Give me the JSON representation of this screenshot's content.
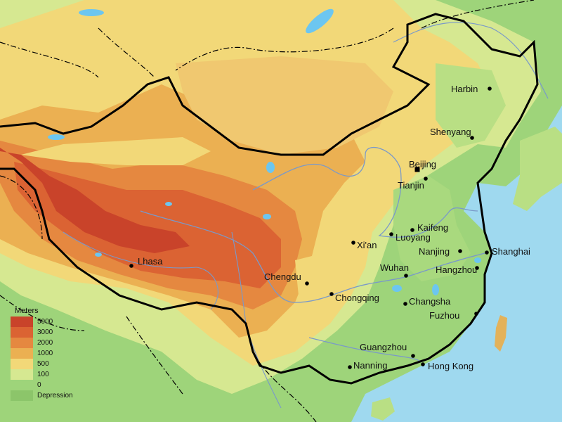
{
  "map": {
    "colors": {
      "sea": "#9fd9ef",
      "depression": "#8cc56a",
      "lowland": "#9ed47a",
      "hills": "#d6e891",
      "upland": "#f2d878",
      "plateau": "#ebb052",
      "high_plateau": "#e58840",
      "mountain": "#db6333",
      "peak": "#c9432a",
      "border": "#000000",
      "river": "#7a99c9",
      "lake": "#6cc6f0"
    },
    "cities": [
      {
        "id": "harbin",
        "name": "Harbin",
        "marker": "dot"
      },
      {
        "id": "shenyang",
        "name": "Shenyang",
        "marker": "dot"
      },
      {
        "id": "beijing",
        "name": "Beijing",
        "marker": "square"
      },
      {
        "id": "tianjin",
        "name": "Tianjin",
        "marker": "dot"
      },
      {
        "id": "kaifeng",
        "name": "Kaifeng",
        "marker": "dot"
      },
      {
        "id": "luoyang",
        "name": "Luoyang",
        "marker": "dot"
      },
      {
        "id": "xian",
        "name": "Xi'an",
        "marker": "dot"
      },
      {
        "id": "nanjing",
        "name": "Nanjing",
        "marker": "dot"
      },
      {
        "id": "shanghai",
        "name": "Shanghai",
        "marker": "dot"
      },
      {
        "id": "lhasa",
        "name": "Lhasa",
        "marker": "dot"
      },
      {
        "id": "wuhan",
        "name": "Wuhan",
        "marker": "dot"
      },
      {
        "id": "hangzhou",
        "name": "Hangzhou",
        "marker": "dot"
      },
      {
        "id": "chengdu",
        "name": "Chengdu",
        "marker": "dot"
      },
      {
        "id": "chongqing",
        "name": "Chongqing",
        "marker": "dot"
      },
      {
        "id": "changsha",
        "name": "Changsha",
        "marker": "dot"
      },
      {
        "id": "fuzhou",
        "name": "Fuzhou",
        "marker": "dot"
      },
      {
        "id": "guangzhou",
        "name": "Guangzhou",
        "marker": "dot"
      },
      {
        "id": "nanning",
        "name": "Nanning",
        "marker": "dot"
      },
      {
        "id": "hongkong",
        "name": "Hong Kong",
        "marker": "dot"
      }
    ]
  },
  "legend": {
    "title": "Meters",
    "items": [
      {
        "label": "5000",
        "color": "#c9432a"
      },
      {
        "label": "3000",
        "color": "#db6333"
      },
      {
        "label": "2000",
        "color": "#e58840"
      },
      {
        "label": "1000",
        "color": "#ebb052"
      },
      {
        "label": "500",
        "color": "#f2d878"
      },
      {
        "label": "100",
        "color": "#d6e891"
      },
      {
        "label": "0",
        "color": "#9ed47a"
      },
      {
        "label": "Depression",
        "color": "#8cc56a"
      }
    ]
  }
}
